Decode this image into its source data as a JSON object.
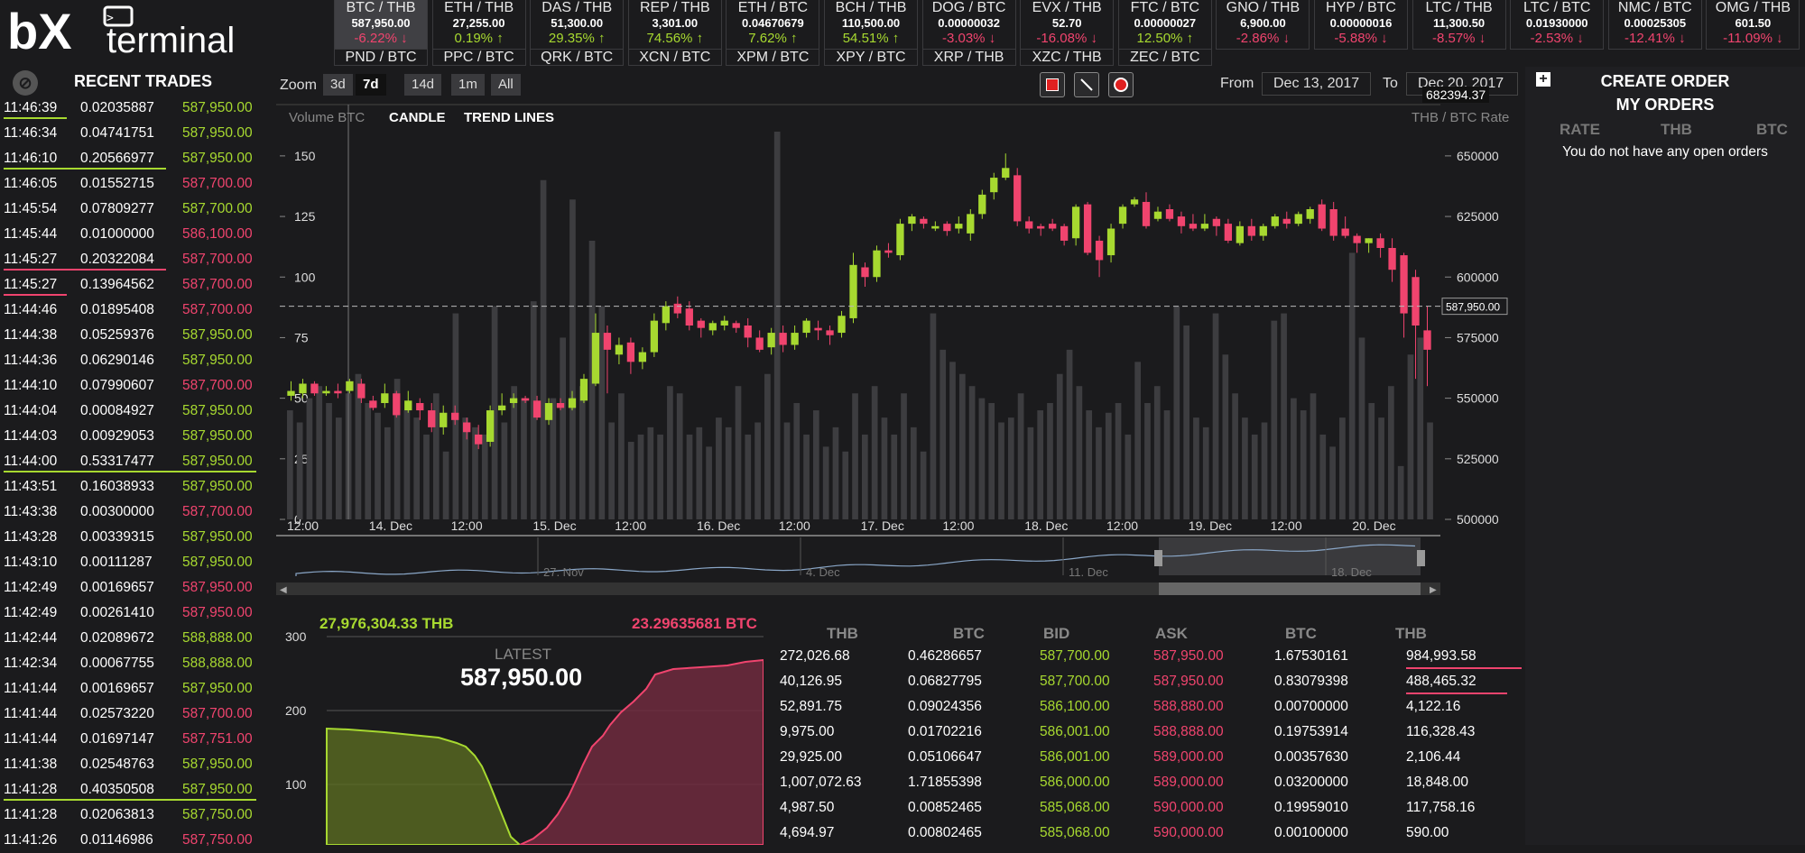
{
  "brand": {
    "logo": "bx terminal"
  },
  "tickers": [
    {
      "pair": "BTC / THB",
      "price": "587,950.00",
      "change": "-6.22%",
      "dir": "dn",
      "active": true
    },
    {
      "pair": "ETH / THB",
      "price": "27,255.00",
      "change": "0.19%",
      "dir": "up"
    },
    {
      "pair": "DAS / THB",
      "price": "51,300.00",
      "change": "29.35%",
      "dir": "up"
    },
    {
      "pair": "REP / THB",
      "price": "3,301.00",
      "change": "74.56%",
      "dir": "up"
    },
    {
      "pair": "ETH / BTC",
      "price": "0.04670679",
      "change": "7.62%",
      "dir": "up"
    },
    {
      "pair": "BCH / THB",
      "price": "110,500.00",
      "change": "54.51%",
      "dir": "up"
    },
    {
      "pair": "DOG / BTC",
      "price": "0.00000032",
      "change": "-3.03%",
      "dir": "dn"
    },
    {
      "pair": "EVX / THB",
      "price": "52.70",
      "change": "-16.08%",
      "dir": "dn"
    },
    {
      "pair": "FTC / BTC",
      "price": "0.00000027",
      "change": "12.50%",
      "dir": "up"
    },
    {
      "pair": "GNO / THB",
      "price": "6,900.00",
      "change": "-2.86%",
      "dir": "dn"
    },
    {
      "pair": "HYP / BTC",
      "price": "0.00000016",
      "change": "-5.88%",
      "dir": "dn"
    },
    {
      "pair": "LTC / THB",
      "price": "11,300.50",
      "change": "-8.57%",
      "dir": "dn"
    },
    {
      "pair": "LTC / BTC",
      "price": "0.01930000",
      "change": "-2.53%",
      "dir": "dn"
    },
    {
      "pair": "NMC / BTC",
      "price": "0.00025305",
      "change": "-12.41%",
      "dir": "dn"
    },
    {
      "pair": "OMG / THB",
      "price": "601.50",
      "change": "-11.09%",
      "dir": "dn"
    }
  ],
  "tickers_row2": [
    "PND / BTC",
    "PPC / BTC",
    "QRK / BTC",
    "XCN / BTC",
    "XPM / BTC",
    "XPY / BTC",
    "XRP / THB",
    "XZC / THB",
    "ZEC / BTC"
  ],
  "recent_trades": {
    "title": "RECENT TRADES",
    "rows": [
      {
        "time": "11:46:39",
        "amount": "0.02035887",
        "price": "587,950.00",
        "dir": "up",
        "line": "up"
      },
      {
        "time": "11:46:34",
        "amount": "0.04741751",
        "price": "587,950.00",
        "dir": "up",
        "line": ""
      },
      {
        "time": "11:46:10",
        "amount": "0.20566977",
        "price": "587,950.00",
        "dir": "up",
        "line": "up-long"
      },
      {
        "time": "11:46:05",
        "amount": "0.01552715",
        "price": "587,700.00",
        "dir": "dn",
        "line": ""
      },
      {
        "time": "11:45:54",
        "amount": "0.07809277",
        "price": "587,700.00",
        "dir": "up",
        "line": ""
      },
      {
        "time": "11:45:44",
        "amount": "0.01000000",
        "price": "586,100.00",
        "dir": "dn",
        "line": ""
      },
      {
        "time": "11:45:27",
        "amount": "0.20322084",
        "price": "587,700.00",
        "dir": "dn",
        "line": "dn-long"
      },
      {
        "time": "11:45:27",
        "amount": "0.13964562",
        "price": "587,700.00",
        "dir": "dn",
        "line": "dn"
      },
      {
        "time": "11:44:46",
        "amount": "0.01895408",
        "price": "587,700.00",
        "dir": "dn",
        "line": ""
      },
      {
        "time": "11:44:38",
        "amount": "0.05259376",
        "price": "587,950.00",
        "dir": "up",
        "line": ""
      },
      {
        "time": "11:44:36",
        "amount": "0.06290146",
        "price": "587,950.00",
        "dir": "up",
        "line": ""
      },
      {
        "time": "11:44:10",
        "amount": "0.07990607",
        "price": "587,700.00",
        "dir": "dn",
        "line": ""
      },
      {
        "time": "11:44:04",
        "amount": "0.00084927",
        "price": "587,950.00",
        "dir": "up",
        "line": ""
      },
      {
        "time": "11:44:03",
        "amount": "0.00929053",
        "price": "587,950.00",
        "dir": "up",
        "line": ""
      },
      {
        "time": "11:44:00",
        "amount": "0.53317477",
        "price": "587,950.00",
        "dir": "up",
        "line": "up-full"
      },
      {
        "time": "11:43:51",
        "amount": "0.16038933",
        "price": "587,950.00",
        "dir": "up",
        "line": ""
      },
      {
        "time": "11:43:38",
        "amount": "0.00300000",
        "price": "587,700.00",
        "dir": "dn",
        "line": ""
      },
      {
        "time": "11:43:28",
        "amount": "0.00339315",
        "price": "587,950.00",
        "dir": "up",
        "line": ""
      },
      {
        "time": "11:43:10",
        "amount": "0.00111287",
        "price": "587,950.00",
        "dir": "up",
        "line": ""
      },
      {
        "time": "11:42:49",
        "amount": "0.00169657",
        "price": "587,950.00",
        "dir": "dn",
        "line": ""
      },
      {
        "time": "11:42:49",
        "amount": "0.00261410",
        "price": "587,950.00",
        "dir": "dn",
        "line": ""
      },
      {
        "time": "11:42:44",
        "amount": "0.02089672",
        "price": "588,888.00",
        "dir": "up",
        "line": ""
      },
      {
        "time": "11:42:34",
        "amount": "0.00067755",
        "price": "588,888.00",
        "dir": "up",
        "line": ""
      },
      {
        "time": "11:41:44",
        "amount": "0.00169657",
        "price": "587,950.00",
        "dir": "up",
        "line": ""
      },
      {
        "time": "11:41:44",
        "amount": "0.02573220",
        "price": "587,700.00",
        "dir": "dn",
        "line": ""
      },
      {
        "time": "11:41:44",
        "amount": "0.01697147",
        "price": "587,751.00",
        "dir": "dn",
        "line": ""
      },
      {
        "time": "11:41:38",
        "amount": "0.02548763",
        "price": "587,950.00",
        "dir": "up",
        "line": ""
      },
      {
        "time": "11:41:28",
        "amount": "0.40350508",
        "price": "587,950.00",
        "dir": "up",
        "line": "up-full"
      },
      {
        "time": "11:41:28",
        "amount": "0.02063813",
        "price": "587,750.00",
        "dir": "up",
        "line": ""
      },
      {
        "time": "11:41:26",
        "amount": "0.01146986",
        "price": "587,750.00",
        "dir": "dn",
        "line": ""
      }
    ]
  },
  "chart": {
    "zoom_label": "Zoom",
    "zoom": [
      "3d",
      "7d",
      "14d",
      "1m",
      "All"
    ],
    "zoom_selected": "7d",
    "from_label": "From",
    "from_date": "Dec 13, 2017",
    "to_label": "To",
    "to_date": "Dec 20, 2017",
    "cursor_value": "682394.37",
    "volume_label": "Volume BTC",
    "candle_label": "CANDLE",
    "trend_label": "TREND LINES",
    "rate_label": "THB / BTC Rate",
    "current_price_tag": "587,950.00",
    "navigator_labels": [
      "27. Nov",
      "4. Dec",
      "11. Dec",
      "18. Dec"
    ]
  },
  "chart_data": {
    "type": "candlestick",
    "x_ticks": [
      "12:00",
      "14. Dec",
      "12:00",
      "15. Dec",
      "12:00",
      "16. Dec",
      "12:00",
      "17. Dec",
      "12:00",
      "18. Dec",
      "12:00",
      "19. Dec",
      "12:00",
      "20. Dec"
    ],
    "y_right_ticks": [
      "650000",
      "625000",
      "600000",
      "575000",
      "550000",
      "525000",
      "500000"
    ],
    "y_left_ticks": [
      "150",
      "125",
      "100",
      "75",
      "50",
      "25",
      "0"
    ],
    "price_range": [
      500000,
      660000
    ],
    "volume_range": [
      0,
      160
    ],
    "candles": [
      [
        551,
        553,
        549,
        557
      ],
      [
        552,
        556,
        550,
        558
      ],
      [
        556,
        552,
        551,
        557
      ],
      [
        552,
        553,
        551,
        555
      ],
      [
        553,
        552,
        550,
        556
      ],
      [
        553,
        557,
        552,
        558
      ],
      [
        556,
        550,
        548,
        558
      ],
      [
        549,
        546,
        545,
        551
      ],
      [
        548,
        552,
        546,
        556
      ],
      [
        552,
        543,
        542,
        553
      ],
      [
        545,
        549,
        544,
        553
      ],
      [
        548,
        545,
        541,
        550
      ],
      [
        545,
        538,
        536,
        548
      ],
      [
        538,
        544,
        535,
        547
      ],
      [
        544,
        541,
        539,
        547
      ],
      [
        540,
        536,
        533,
        542
      ],
      [
        535,
        531,
        529,
        539
      ],
      [
        532,
        545,
        530,
        547
      ],
      [
        545,
        547,
        543,
        552
      ],
      [
        548,
        550,
        546,
        552
      ],
      [
        550,
        549,
        548,
        551
      ],
      [
        549,
        542,
        541,
        551
      ],
      [
        541,
        548,
        539,
        550
      ],
      [
        548,
        546,
        545,
        550
      ],
      [
        546,
        550,
        545,
        553
      ],
      [
        549,
        558,
        548,
        560
      ],
      [
        556,
        577,
        555,
        585
      ],
      [
        577,
        570,
        552,
        580
      ],
      [
        568,
        572,
        564,
        575
      ],
      [
        573,
        565,
        560,
        575
      ],
      [
        565,
        569,
        562,
        571
      ],
      [
        569,
        582,
        567,
        585
      ],
      [
        581,
        588,
        578,
        590
      ],
      [
        589,
        585,
        583,
        592
      ],
      [
        587,
        580,
        578,
        590
      ],
      [
        582,
        579,
        575,
        583
      ],
      [
        578,
        581,
        576,
        582
      ],
      [
        580,
        582,
        578,
        584
      ],
      [
        581,
        579,
        577,
        582
      ],
      [
        580,
        575,
        571,
        583
      ],
      [
        575,
        570,
        569,
        578
      ],
      [
        571,
        577,
        568,
        579
      ],
      [
        577,
        572,
        569,
        580
      ],
      [
        572,
        577,
        570,
        580
      ],
      [
        577,
        582,
        575,
        583
      ],
      [
        579,
        578,
        574,
        582
      ],
      [
        578,
        576,
        572,
        580
      ],
      [
        577,
        584,
        575,
        586
      ],
      [
        583,
        605,
        581,
        610
      ],
      [
        604,
        600,
        596,
        606
      ],
      [
        600,
        611,
        598,
        613
      ],
      [
        611,
        610,
        608,
        614
      ],
      [
        609,
        622,
        607,
        624
      ],
      [
        622,
        625,
        619,
        626
      ],
      [
        624,
        622,
        620,
        625
      ],
      [
        620,
        621,
        619,
        623
      ],
      [
        622,
        619,
        617,
        623
      ],
      [
        620,
        622,
        618,
        625
      ],
      [
        618,
        626,
        615,
        628
      ],
      [
        626,
        634,
        624,
        636
      ],
      [
        635,
        641,
        632,
        643
      ],
      [
        641,
        645,
        640,
        651
      ],
      [
        642,
        623,
        621,
        645
      ],
      [
        623,
        620,
        618,
        625
      ],
      [
        621,
        620,
        617,
        622
      ],
      [
        622,
        620,
        619,
        624
      ],
      [
        621,
        615,
        613,
        622
      ],
      [
        616,
        629,
        613,
        630
      ],
      [
        630,
        610,
        609,
        631
      ],
      [
        615,
        607,
        600,
        617
      ],
      [
        609,
        620,
        606,
        622
      ],
      [
        622,
        629,
        620,
        630
      ],
      [
        630,
        632,
        629,
        633
      ],
      [
        631,
        621,
        620,
        635
      ],
      [
        624,
        627,
        623,
        629
      ],
      [
        628,
        624,
        623,
        630
      ],
      [
        625,
        621,
        618,
        627
      ],
      [
        622,
        620,
        619,
        626
      ],
      [
        620,
        622,
        619,
        626
      ],
      [
        624,
        621,
        617,
        625
      ],
      [
        622,
        615,
        614,
        624
      ],
      [
        614,
        621,
        613,
        623
      ],
      [
        621,
        617,
        615,
        624
      ],
      [
        617,
        621,
        615,
        622
      ],
      [
        621,
        625,
        620,
        626
      ],
      [
        624,
        622,
        620,
        627
      ],
      [
        622,
        626,
        621,
        627
      ],
      [
        624,
        628,
        622,
        629
      ],
      [
        630,
        620,
        619,
        632
      ],
      [
        628,
        617,
        615,
        631
      ],
      [
        620,
        617,
        616,
        625
      ],
      [
        617,
        614,
        610,
        618
      ],
      [
        614,
        616,
        610,
        616
      ],
      [
        616,
        612,
        608,
        618
      ],
      [
        612,
        603,
        598,
        616
      ],
      [
        609,
        585,
        575,
        610
      ],
      [
        600,
        580,
        558,
        603
      ],
      [
        578,
        570,
        555,
        588
      ]
    ],
    "volumes": [
      45,
      40,
      50,
      55,
      48,
      42,
      52,
      60,
      48,
      44,
      38,
      58,
      45,
      42,
      35,
      52,
      28,
      85,
      42,
      38,
      35,
      88,
      40,
      55,
      50,
      90,
      140,
      50,
      75,
      132,
      55,
      115,
      88,
      40,
      52,
      32,
      35,
      38,
      35,
      55,
      52,
      35,
      38,
      30,
      42,
      38,
      55,
      35,
      40,
      60,
      160,
      40,
      48,
      35,
      45,
      30,
      38,
      28,
      52,
      35,
      55,
      42,
      35,
      52,
      38,
      28,
      85,
      70,
      65,
      60,
      55,
      50,
      48,
      40,
      42,
      52,
      38,
      45,
      48,
      60,
      70,
      55,
      45,
      38,
      44,
      48,
      35,
      65,
      48,
      55,
      45,
      88,
      80,
      42,
      38,
      85,
      68,
      52,
      42,
      35,
      40,
      82,
      85,
      50,
      45,
      52,
      35,
      30,
      42,
      110,
      75,
      48,
      42,
      55,
      22,
      68,
      75,
      40
    ]
  },
  "depth": {
    "bid_total": "27,976,304.33 THB",
    "ask_total": "23.29635681 BTC",
    "latest_label": "LATEST",
    "latest_value": "587,950.00",
    "y_ticks": [
      "300",
      "200",
      "100"
    ]
  },
  "orderbook": {
    "headers": [
      "THB",
      "BTC",
      "BID",
      "ASK",
      "BTC",
      "THB"
    ],
    "rows": [
      [
        "272,026.68",
        "0.46286657",
        "587,700.00",
        "587,950.00",
        "1.67530161",
        "984,993.58"
      ],
      [
        "40,126.95",
        "0.06827795",
        "587,700.00",
        "587,950.00",
        "0.83079398",
        "488,465.32"
      ],
      [
        "52,891.75",
        "0.09024356",
        "586,100.00",
        "588,880.00",
        "0.00700000",
        "4,122.16"
      ],
      [
        "9,975.00",
        "0.01702216",
        "586,001.00",
        "588,888.00",
        "0.19753914",
        "116,328.43"
      ],
      [
        "29,925.00",
        "0.05106647",
        "586,001.00",
        "589,000.00",
        "0.00357630",
        "2,106.44"
      ],
      [
        "1,007,072.63",
        "1.71855398",
        "586,000.00",
        "589,000.00",
        "0.03200000",
        "18,848.00"
      ],
      [
        "4,987.50",
        "0.00852465",
        "585,068.00",
        "590,000.00",
        "0.19959010",
        "117,758.16"
      ],
      [
        "4,694.97",
        "0.00802465",
        "585,068.00",
        "590,000.00",
        "0.00100000",
        "590.00"
      ]
    ]
  },
  "orders": {
    "create_label": "CREATE ORDER",
    "my_orders_label": "MY ORDERS",
    "headers": [
      "RATE",
      "THB",
      "BTC"
    ],
    "empty_text": "You do not have any open orders"
  }
}
